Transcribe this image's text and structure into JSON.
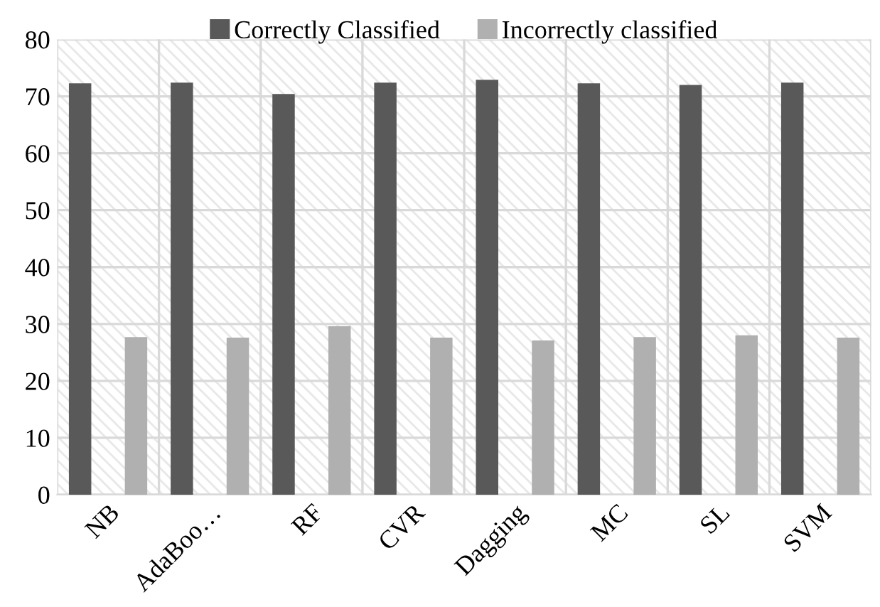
{
  "chart_data": {
    "type": "bar",
    "categories": [
      "NB",
      "AdaBoo…",
      "RF",
      "CVR",
      "Dagging",
      "MC",
      "SL",
      "SVM"
    ],
    "series": [
      {
        "name": "Correctly Classified",
        "color": "#595959",
        "values": [
          72.3,
          72.4,
          70.4,
          72.4,
          72.9,
          72.3,
          72.0,
          72.4
        ]
      },
      {
        "name": "Incorrectly classified",
        "color": "#b0b0b0",
        "values": [
          27.7,
          27.6,
          29.6,
          27.6,
          27.1,
          27.7,
          28.0,
          27.6
        ]
      }
    ],
    "ylim": [
      0,
      80
    ],
    "yticks": [
      0,
      10,
      20,
      30,
      40,
      50,
      60,
      70,
      80
    ],
    "grid": true,
    "legend": "top"
  }
}
